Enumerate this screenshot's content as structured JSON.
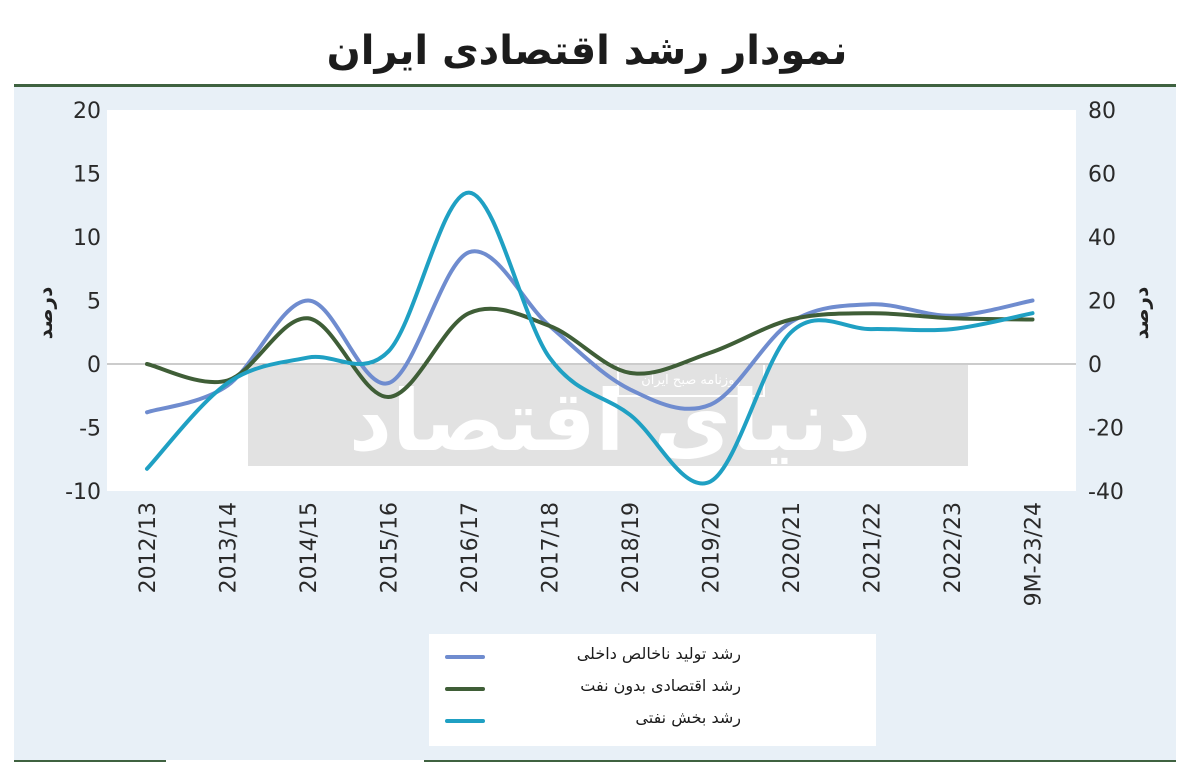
{
  "title": "نمودار رشد اقتصادی ایران",
  "watermark": {
    "large": "دنیای اقتصاد",
    "small": "روزنامه صبح ایران"
  },
  "colors": {
    "gdp": "#6f8ccf",
    "non_oil": "#3f5e37",
    "oil": "#1fa0c3",
    "rule": "#3f6240",
    "panel": "#e8f0f7"
  },
  "chart_data": {
    "type": "line",
    "categories": [
      "2012/13",
      "2013/14",
      "2014/15",
      "2015/16",
      "2016/17",
      "2017/18",
      "2018/19",
      "2019/20",
      "2020/21",
      "2021/22",
      "2022/23",
      "9M-23/24"
    ],
    "y_left": {
      "label": "درصد",
      "range": [
        -10,
        20
      ],
      "ticks": [
        "-10",
        "-5",
        "0",
        "5",
        "10",
        "15",
        "20"
      ]
    },
    "y_right": {
      "label": "درصد",
      "range": [
        -40,
        80
      ],
      "ticks": [
        "-40",
        "-20",
        "0",
        "20",
        "40",
        "60",
        "80"
      ]
    },
    "series": [
      {
        "name": "رشد تولید ناخالص داخلی",
        "axis": "left",
        "color": "#6f8ccf",
        "values": [
          -3.8,
          -1.7,
          5.0,
          -1.5,
          8.8,
          3.0,
          -2.0,
          -3.2,
          3.3,
          4.7,
          3.8,
          5.0
        ]
      },
      {
        "name": "رشد اقتصادی بدون نفت",
        "axis": "left",
        "color": "#3f5e37",
        "values": [
          0.0,
          -1.3,
          3.6,
          -2.6,
          4.0,
          3.0,
          -0.7,
          0.9,
          3.5,
          4.0,
          3.6,
          3.5
        ]
      },
      {
        "name": "رشد بخش نفتی",
        "axis": "right",
        "color": "#1fa0c3",
        "values": [
          -33,
          -6,
          2,
          4,
          54,
          2,
          -16,
          -37,
          10,
          11,
          11,
          16
        ]
      }
    ],
    "grid": false,
    "legend_position": "bottom"
  }
}
